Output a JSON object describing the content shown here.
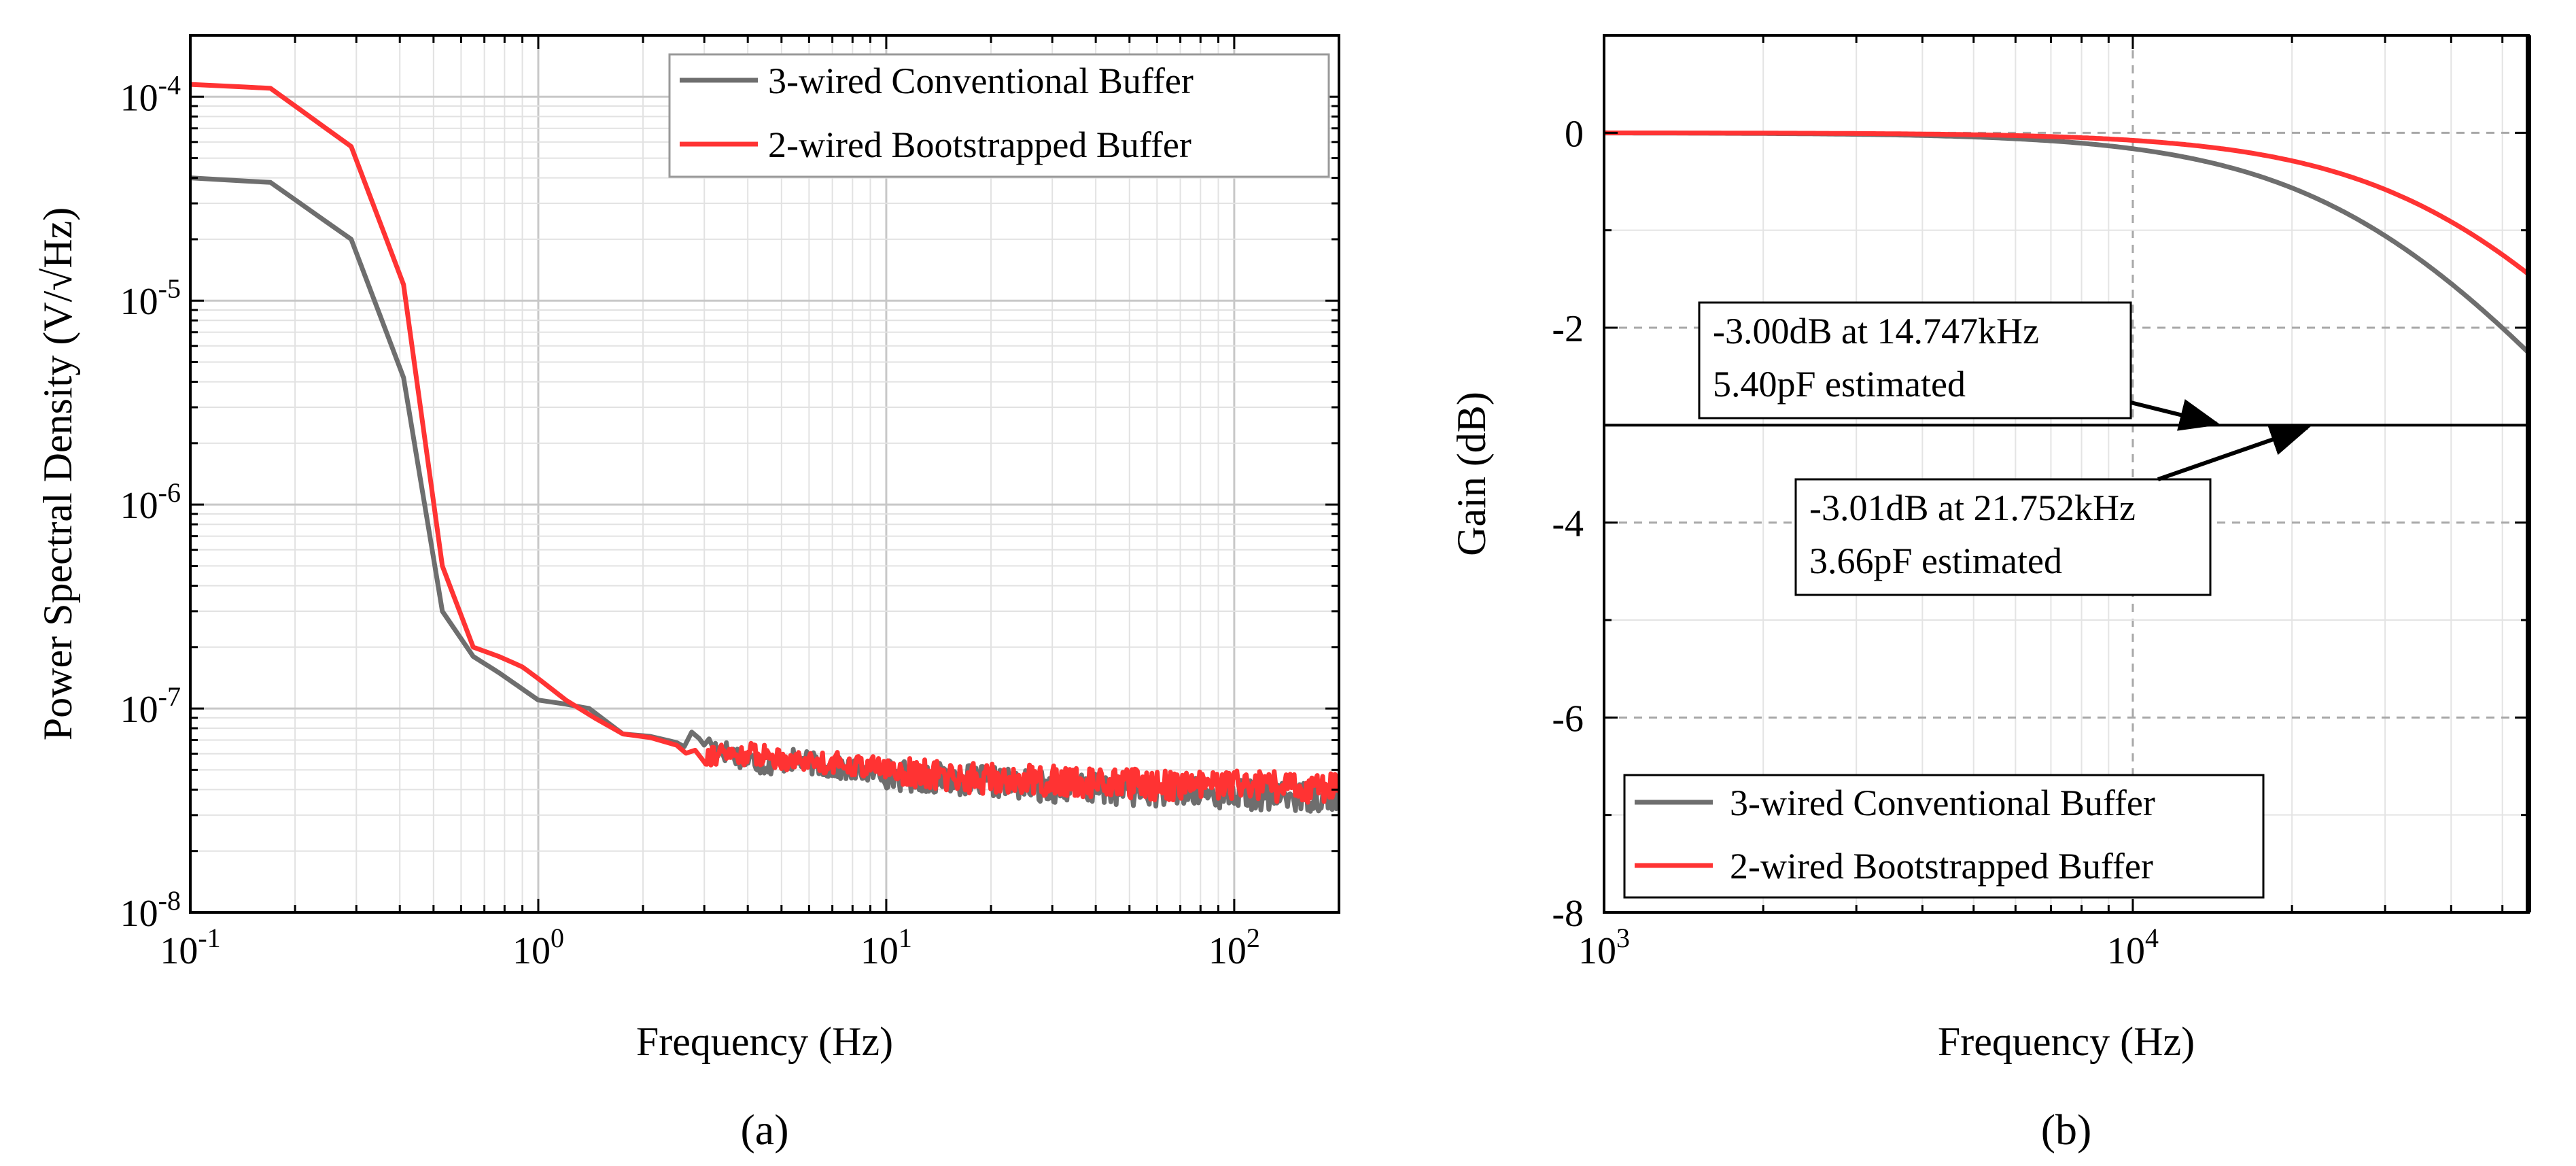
{
  "chart_data": [
    {
      "type": "line",
      "panel_caption": "(a)",
      "xlabel": "Frequency (Hz)",
      "ylabel": "Power Spectral Density (V/√Hz)",
      "x_scale": "log",
      "y_scale": "log",
      "xlim": [
        0.1,
        200
      ],
      "ylim": [
        1e-08,
        0.0002
      ],
      "grid": true,
      "legend_position": "top-right",
      "x_ticks": [
        {
          "value": 0.1,
          "base": "10",
          "exp": "-1"
        },
        {
          "value": 1,
          "base": "10",
          "exp": "0"
        },
        {
          "value": 10,
          "base": "10",
          "exp": "1"
        },
        {
          "value": 100,
          "base": "10",
          "exp": "2"
        }
      ],
      "y_ticks": [
        {
          "value": 1e-08,
          "base": "10",
          "exp": "-8"
        },
        {
          "value": 1e-07,
          "base": "10",
          "exp": "-7"
        },
        {
          "value": 1e-06,
          "base": "10",
          "exp": "-6"
        },
        {
          "value": 1e-05,
          "base": "10",
          "exp": "-5"
        },
        {
          "value": 0.0001,
          "base": "10",
          "exp": "-4"
        }
      ],
      "series": [
        {
          "name": "3-wired Conventional Buffer",
          "color": "#6e6e6e",
          "x": [
            0.1,
            0.17,
            0.29,
            0.41,
            0.53,
            0.65,
            0.77,
            1.0,
            1.2,
            1.4,
            1.75,
            2.1,
            2.5,
            2.9,
            3.2,
            3.8,
            4.5,
            5.5,
            7.0,
            9.0,
            12,
            16,
            22,
            30,
            45,
            65,
            100,
            150,
            200
          ],
          "y": [
            4e-05,
            3.8e-05,
            2e-05,
            4.2e-06,
            3e-07,
            1.8e-07,
            1.5e-07,
            1.1e-07,
            1.05e-07,
            1e-07,
            7.5e-08,
            7.3e-08,
            6.8e-08,
            7.2e-08,
            6.5e-08,
            5.8e-08,
            5.3e-08,
            5.6e-08,
            5.1e-08,
            4.9e-08,
            4.6e-08,
            4.5e-08,
            4.3e-08,
            4.1e-08,
            4e-08,
            3.9e-08,
            3.8e-08,
            3.7e-08,
            3.7e-08
          ]
        },
        {
          "name": "2-wired Bootstrapped Buffer",
          "color": "#ff3333",
          "x": [
            0.1,
            0.17,
            0.29,
            0.41,
            0.53,
            0.65,
            0.77,
            0.9,
            1.0,
            1.2,
            1.45,
            1.75,
            2.1,
            2.5,
            3.0,
            3.6,
            4.2,
            5.0,
            6.0,
            7.5,
            9.0,
            12,
            16,
            22,
            30,
            45,
            65,
            100,
            150,
            200
          ],
          "y": [
            0.000115,
            0.00011,
            5.7e-05,
            1.2e-05,
            5e-07,
            2e-07,
            1.8e-07,
            1.6e-07,
            1.4e-07,
            1.1e-07,
            9e-08,
            7.5e-08,
            7.2e-08,
            6.6e-08,
            6e-08,
            5.9e-08,
            6e-08,
            5.7e-08,
            5.5e-08,
            5.4e-08,
            5.2e-08,
            4.8e-08,
            4.6e-08,
            4.5e-08,
            4.4e-08,
            4.3e-08,
            4.2e-08,
            4.2e-08,
            4.1e-08,
            4.1e-08
          ]
        }
      ]
    },
    {
      "type": "line",
      "panel_caption": "(b)",
      "xlabel": "Frequency (Hz)",
      "ylabel": "Gain (dB)",
      "x_scale": "log",
      "y_scale": "linear",
      "xlim": [
        1000,
        56000
      ],
      "ylim": [
        -8,
        1
      ],
      "grid": true,
      "legend_position": "bottom-left",
      "x_ticks": [
        {
          "value": 1000,
          "base": "10",
          "exp": "3"
        },
        {
          "value": 10000,
          "base": "10",
          "exp": "4"
        }
      ],
      "y_ticks": [
        0,
        -2,
        -4,
        -6,
        -8
      ],
      "reference_line_y": -3,
      "annotations": [
        {
          "lines": [
            "-3.00dB at 14.747kHz",
            "5.40pF estimated"
          ],
          "point": [
            14747,
            -3.0
          ]
        },
        {
          "lines": [
            "-3.01dB at 21.752kHz",
            "3.66pF estimated"
          ],
          "point": [
            21752,
            -3.01
          ]
        }
      ],
      "series": [
        {
          "name": "3-wired Conventional Buffer",
          "color": "#6e6e6e",
          "cutoff_hz": 14747
        },
        {
          "name": "2-wired Bootstrapped Buffer",
          "color": "#ff3333",
          "cutoff_hz": 21752
        }
      ]
    }
  ]
}
